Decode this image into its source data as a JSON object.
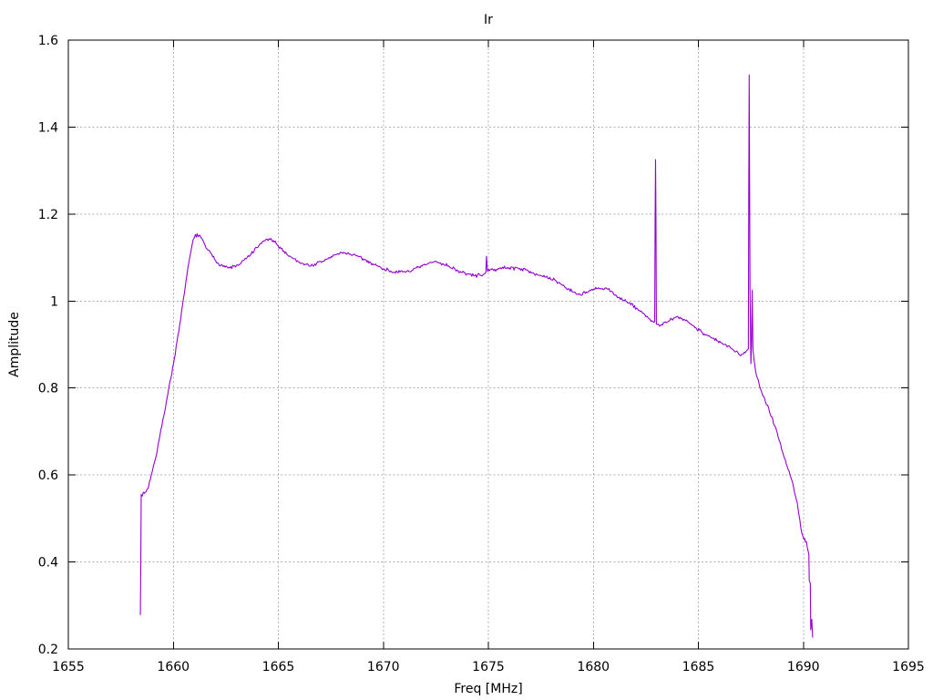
{
  "window": {
    "background": "#ffffff"
  },
  "chart": {
    "title": "Ir",
    "xlabel": "Freq [MHz]",
    "ylabel": "Amplitude"
  },
  "chart_data": {
    "type": "line",
    "title": "Ir",
    "xlabel": "Freq [MHz]",
    "ylabel": "Amplitude",
    "xlim": [
      1655,
      1695
    ],
    "ylim": [
      0.2,
      1.6
    ],
    "x_ticks": [
      1655,
      1660,
      1665,
      1670,
      1675,
      1680,
      1685,
      1690,
      1695
    ],
    "x_tick_labels": [
      "1655",
      "1660",
      "1665",
      "1670",
      "1675",
      "1680",
      "1685",
      "1690",
      "1695"
    ],
    "y_ticks": [
      0.2,
      0.4,
      0.6,
      0.8,
      1.0,
      1.2,
      1.4,
      1.6
    ],
    "y_tick_labels": [
      "0.2",
      "0.4",
      "0.6",
      "0.8",
      "1",
      "1.2",
      "1.4",
      "1.6"
    ],
    "grid": true,
    "grid_color": "#b0b0b0",
    "legend": "none",
    "noise_amplitude": 0.005,
    "series": [
      {
        "name": "Ir",
        "color": "#9400d3",
        "points": [
          [
            1658.43,
            0.279
          ],
          [
            1658.45,
            0.4
          ],
          [
            1658.47,
            0.555
          ],
          [
            1658.62,
            0.558
          ],
          [
            1658.78,
            0.568
          ],
          [
            1658.95,
            0.6
          ],
          [
            1659.15,
            0.638
          ],
          [
            1659.45,
            0.712
          ],
          [
            1659.75,
            0.79
          ],
          [
            1660.05,
            0.868
          ],
          [
            1660.35,
            0.958
          ],
          [
            1660.6,
            1.045
          ],
          [
            1660.8,
            1.105
          ],
          [
            1660.95,
            1.142
          ],
          [
            1661.05,
            1.153
          ],
          [
            1661.3,
            1.147
          ],
          [
            1661.6,
            1.12
          ],
          [
            1662.1,
            1.088
          ],
          [
            1662.6,
            1.076
          ],
          [
            1663.1,
            1.082
          ],
          [
            1663.7,
            1.108
          ],
          [
            1664.3,
            1.138
          ],
          [
            1664.55,
            1.143
          ],
          [
            1664.9,
            1.132
          ],
          [
            1665.4,
            1.108
          ],
          [
            1666.0,
            1.089
          ],
          [
            1666.55,
            1.081
          ],
          [
            1667.1,
            1.091
          ],
          [
            1667.7,
            1.106
          ],
          [
            1668.1,
            1.112
          ],
          [
            1668.7,
            1.104
          ],
          [
            1669.4,
            1.088
          ],
          [
            1670.0,
            1.074
          ],
          [
            1670.7,
            1.065
          ],
          [
            1671.4,
            1.071
          ],
          [
            1672.1,
            1.085
          ],
          [
            1672.45,
            1.091
          ],
          [
            1673.1,
            1.081
          ],
          [
            1673.7,
            1.066
          ],
          [
            1674.35,
            1.058
          ],
          [
            1674.8,
            1.062
          ],
          [
            1674.88,
            1.066
          ],
          [
            1674.91,
            1.103
          ],
          [
            1674.96,
            1.068
          ],
          [
            1675.3,
            1.073
          ],
          [
            1675.9,
            1.077
          ],
          [
            1676.5,
            1.075
          ],
          [
            1677.0,
            1.068
          ],
          [
            1677.6,
            1.056
          ],
          [
            1678.2,
            1.047
          ],
          [
            1678.8,
            1.028
          ],
          [
            1679.25,
            1.015
          ],
          [
            1679.75,
            1.021
          ],
          [
            1680.2,
            1.029
          ],
          [
            1680.7,
            1.027
          ],
          [
            1681.1,
            1.012
          ],
          [
            1681.6,
            0.998
          ],
          [
            1682.1,
            0.982
          ],
          [
            1682.6,
            0.962
          ],
          [
            1682.88,
            0.951
          ],
          [
            1682.92,
            0.953
          ],
          [
            1682.94,
            1.19
          ],
          [
            1682.96,
            1.325
          ],
          [
            1682.98,
            1.19
          ],
          [
            1683.0,
            0.947
          ],
          [
            1683.2,
            0.944
          ],
          [
            1683.6,
            0.954
          ],
          [
            1683.95,
            0.963
          ],
          [
            1684.35,
            0.957
          ],
          [
            1684.75,
            0.944
          ],
          [
            1685.15,
            0.929
          ],
          [
            1685.65,
            0.915
          ],
          [
            1686.15,
            0.902
          ],
          [
            1686.65,
            0.888
          ],
          [
            1687.05,
            0.877
          ],
          [
            1687.28,
            0.885
          ],
          [
            1687.38,
            0.89
          ],
          [
            1687.4,
            1.27
          ],
          [
            1687.42,
            1.52
          ],
          [
            1687.44,
            1.26
          ],
          [
            1687.46,
            1.02
          ],
          [
            1687.5,
            0.856
          ],
          [
            1687.53,
            0.9
          ],
          [
            1687.56,
            1.025
          ],
          [
            1687.6,
            0.888
          ],
          [
            1687.68,
            0.855
          ],
          [
            1687.76,
            0.83
          ],
          [
            1687.95,
            0.798
          ],
          [
            1688.35,
            0.753
          ],
          [
            1688.75,
            0.698
          ],
          [
            1689.05,
            0.646
          ],
          [
            1689.45,
            0.588
          ],
          [
            1689.7,
            0.538
          ],
          [
            1689.88,
            0.478
          ],
          [
            1690.02,
            0.452
          ],
          [
            1690.14,
            0.447
          ],
          [
            1690.24,
            0.422
          ],
          [
            1690.26,
            0.418
          ],
          [
            1690.28,
            0.357
          ],
          [
            1690.33,
            0.351
          ],
          [
            1690.35,
            0.244
          ],
          [
            1690.4,
            0.268
          ],
          [
            1690.44,
            0.227
          ]
        ]
      }
    ]
  }
}
